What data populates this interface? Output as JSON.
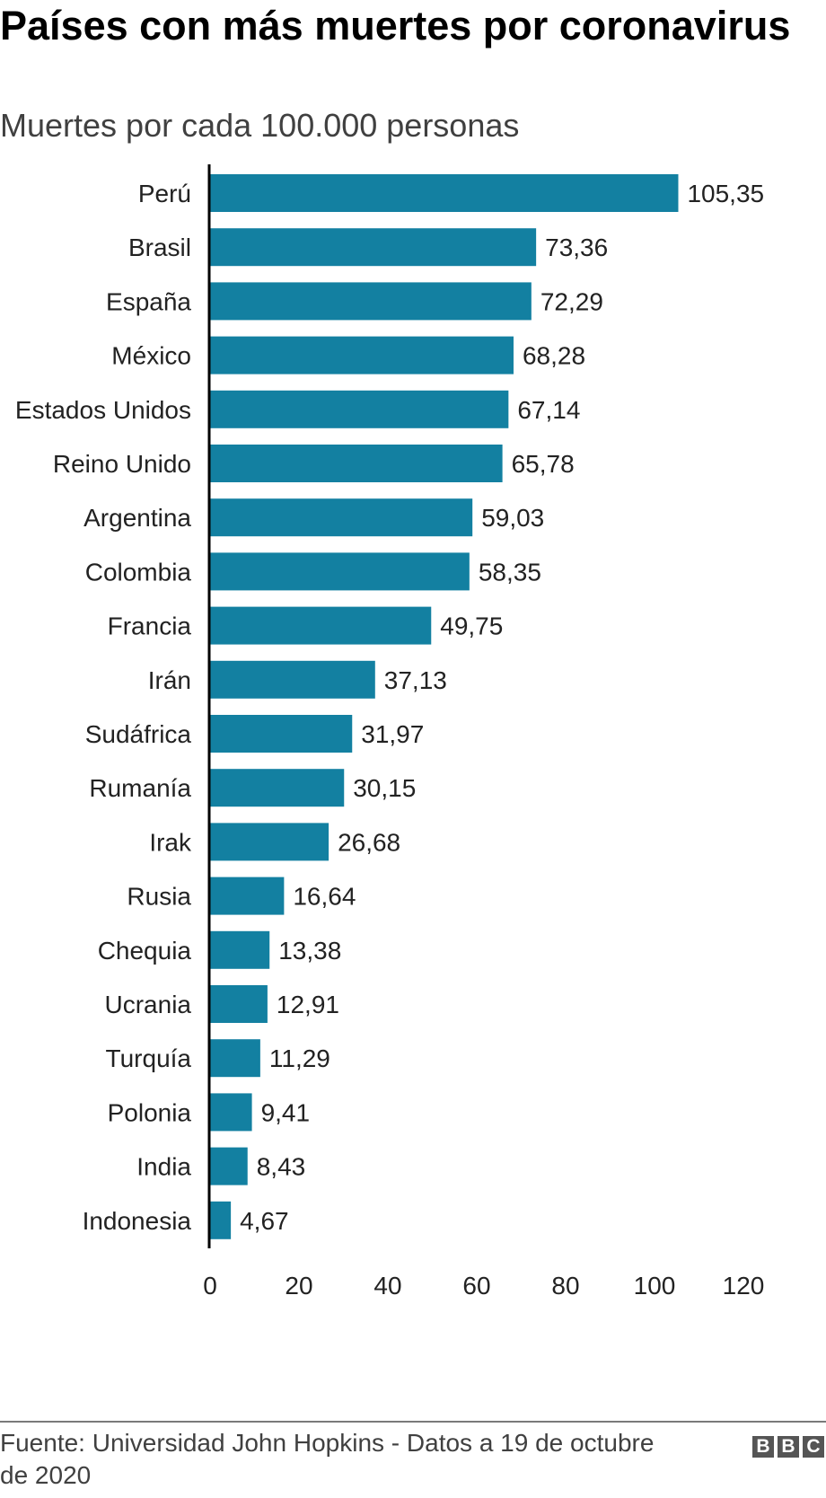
{
  "title": "Países con más muertes por coronavirus",
  "subtitle": "Muertes por cada 100.000 personas",
  "source": "Fuente: Universidad John Hopkins - Datos a 19 de octubre de 2020",
  "logo": {
    "letters": [
      "B",
      "B",
      "C"
    ]
  },
  "colors": {
    "bar": "#1380A1",
    "axis": "#000000",
    "text": "#222222"
  },
  "chart_data": {
    "type": "bar",
    "orientation": "horizontal",
    "categories": [
      "Perú",
      "Brasil",
      "España",
      "México",
      "Estados Unidos",
      "Reino Unido",
      "Argentina",
      "Colombia",
      "Francia",
      "Irán",
      "Sudáfrica",
      "Rumanía",
      "Irak",
      "Rusia",
      "Chequia",
      "Ucrania",
      "Turquía",
      "Polonia",
      "India",
      "Indonesia"
    ],
    "values": [
      105.35,
      73.36,
      72.29,
      68.28,
      67.14,
      65.78,
      59.03,
      58.35,
      49.75,
      37.13,
      31.97,
      30.15,
      26.68,
      16.64,
      13.38,
      12.91,
      11.29,
      9.41,
      8.43,
      4.67
    ],
    "value_labels": [
      "105,35",
      "73,36",
      "72,29",
      "68,28",
      "67,14",
      "65,78",
      "59,03",
      "58,35",
      "49,75",
      "37,13",
      "31,97",
      "30,15",
      "26,68",
      "16,64",
      "13,38",
      "12,91",
      "11,29",
      "9,41",
      "8,43",
      "4,67"
    ],
    "x_ticks": [
      0,
      20,
      40,
      60,
      80,
      100,
      120
    ],
    "xlim": [
      0,
      120
    ],
    "grid": false,
    "legend": "none"
  }
}
